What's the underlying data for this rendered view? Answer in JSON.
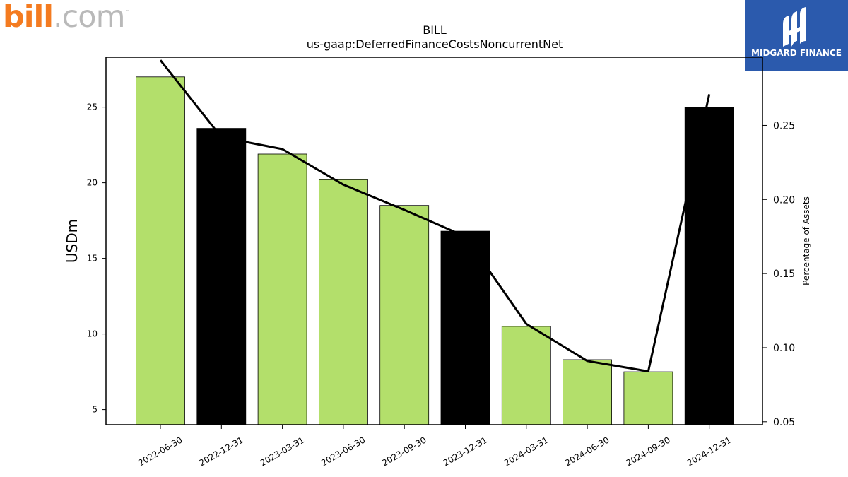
{
  "branding": {
    "company_logo_main": "bill",
    "company_logo_suffix": ".com",
    "company_logo_tm": "™",
    "partner_logo_name": "MIDGARD FINANCE",
    "colors": {
      "bill_orange": "#f47b20",
      "bill_gray": "#b9b9b9",
      "midgard_blue": "#2b5aad"
    }
  },
  "chart_data": {
    "type": "bar",
    "title": "BILL",
    "subtitle": "us-gaap:DeferredFinanceCostsNoncurrentNet",
    "ylabel": "USDm",
    "y2label": "Percentage of Assets",
    "categories": [
      "2022-06-30",
      "2022-12-31",
      "2023-03-31",
      "2023-06-30",
      "2023-09-30",
      "2023-12-31",
      "2024-03-31",
      "2024-06-30",
      "2024-09-30",
      "2024-12-31"
    ],
    "series": [
      {
        "axis": "left",
        "kind": "bar",
        "values": [
          27.0,
          23.6,
          21.9,
          20.2,
          18.5,
          16.8,
          10.5,
          8.3,
          7.5,
          25.0
        ],
        "colors": [
          "#b3df6b",
          "#000000",
          "#b3df6b",
          "#b3df6b",
          "#b3df6b",
          "#000000",
          "#b3df6b",
          "#b3df6b",
          "#b3df6b",
          "#000000"
        ]
      },
      {
        "axis": "right",
        "kind": "line",
        "color": "#000000",
        "values": [
          0.294,
          0.242,
          0.234,
          0.21,
          0.193,
          0.175,
          0.116,
          0.091,
          0.084,
          0.271
        ]
      }
    ],
    "ylim": [
      4.0,
      28.3
    ],
    "y2lim": [
      0.048,
      0.296
    ],
    "yticks": [
      "5",
      "10",
      "15",
      "20",
      "25"
    ],
    "y2ticks": [
      "0.05",
      "0.10",
      "0.15",
      "0.20",
      "0.25"
    ],
    "grid": false,
    "legend": "none"
  }
}
